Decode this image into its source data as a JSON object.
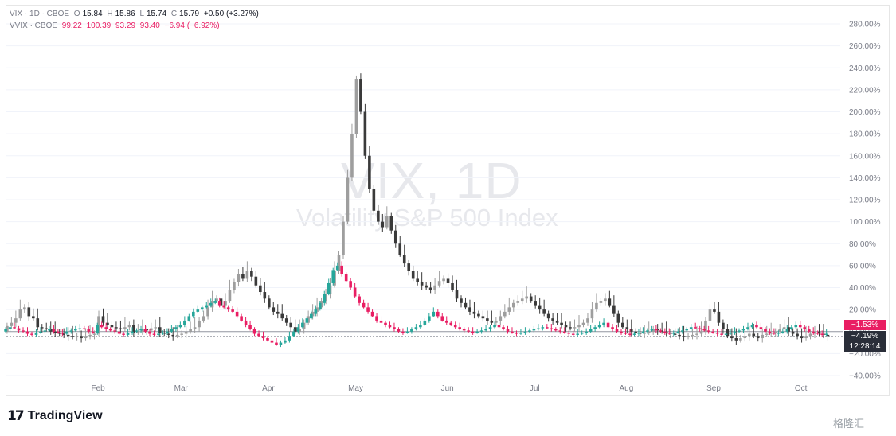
{
  "legend": {
    "vix": {
      "name": "VIX · 1D · CBOE",
      "open_label": "O",
      "open": "15.84",
      "high_label": "H",
      "high": "15.86",
      "low_label": "L",
      "low": "15.74",
      "close_label": "C",
      "close": "15.79",
      "change": "+0.50 (+3.27%)"
    },
    "vvix": {
      "name": "VVIX · CBOE",
      "open": "99.22",
      "high": "100.39",
      "low": "93.29",
      "close": "93.40",
      "change": "−6.94 (−6.92%)"
    }
  },
  "watermark": {
    "title": "VIX, 1D",
    "subtitle": "Volatility S&P 500 Index"
  },
  "badges": {
    "vvix": "−1.53%",
    "vix": "−4.19%",
    "time": "12:28:14"
  },
  "branding": {
    "logo": "TradingView",
    "corner": "格隆汇"
  },
  "colors": {
    "up": "#26a69a",
    "down": "#e91e63",
    "vix_up": "#9e9e9e",
    "vix_down": "#3a3a3a",
    "grid": "#f0f3fa"
  },
  "chart_data": {
    "type": "candlestick",
    "y_axis": {
      "unit": "%",
      "min": -40,
      "max": 280,
      "ticks": [
        "280.00%",
        "260.00%",
        "240.00%",
        "220.00%",
        "200.00%",
        "180.00%",
        "160.00%",
        "140.00%",
        "120.00%",
        "100.00%",
        "80.00%",
        "60.00%",
        "40.00%",
        "20.00%",
        "0.00%",
        "−20.00%",
        "−40.00%"
      ]
    },
    "x_axis": {
      "ticks": [
        "Feb",
        "Mar",
        "Apr",
        "May",
        "Jun",
        "Jul",
        "Aug",
        "Sep",
        "Oct"
      ]
    },
    "x_range": [
      0,
      191
    ],
    "tick_positions": [
      21,
      40,
      60,
      80,
      101,
      121,
      142,
      162,
      182
    ],
    "series": [
      {
        "name": "VIX",
        "style": "gray-candles",
        "close": [
          5,
          8,
          12,
          20,
          22,
          14,
          12,
          4,
          3,
          2,
          0,
          -1,
          -2,
          -3,
          -4,
          -5,
          -4,
          -6,
          -4,
          -3,
          -2,
          14,
          8,
          6,
          4,
          3,
          2,
          4,
          6,
          -1,
          0,
          2,
          1,
          3,
          4,
          -1,
          -2,
          -3,
          -4,
          -3,
          -2,
          0,
          2,
          4,
          10,
          14,
          22,
          28,
          30,
          24,
          28,
          38,
          45,
          52,
          48,
          55,
          50,
          42,
          36,
          30,
          22,
          18,
          16,
          12,
          8,
          4,
          0,
          2,
          8,
          14,
          18,
          22,
          28,
          34,
          42,
          55,
          70,
          100,
          140,
          180,
          230,
          200,
          160,
          130,
          110,
          100,
          95,
          105,
          92,
          80,
          70,
          62,
          55,
          48,
          45,
          42,
          40,
          38,
          42,
          46,
          48,
          44,
          38,
          30,
          26,
          22,
          18,
          16,
          14,
          12,
          10,
          8,
          10,
          14,
          18,
          22,
          26,
          28,
          30,
          32,
          28,
          24,
          20,
          16,
          12,
          10,
          8,
          6,
          4,
          3,
          4,
          6,
          8,
          12,
          20,
          26,
          28,
          30,
          24,
          16,
          8,
          4,
          2,
          0,
          -1,
          -2,
          -1,
          0,
          2,
          1,
          0,
          -1,
          -2,
          -3,
          -4,
          -5,
          -4,
          -3,
          -2,
          0,
          10,
          20,
          18,
          8,
          2,
          -4,
          -6,
          -8,
          -6,
          -4,
          -2,
          -4,
          -6,
          -3,
          -2,
          -1,
          0,
          2,
          4,
          0,
          -2,
          -4,
          -6,
          -4,
          -2,
          0,
          -2,
          -3,
          -4
        ]
      },
      {
        "name": "VVIX",
        "style": "color-candles",
        "close": [
          2,
          4,
          3,
          1,
          0,
          -2,
          -3,
          -1,
          0,
          1,
          2,
          0,
          -1,
          -2,
          0,
          1,
          2,
          3,
          2,
          0,
          -1,
          6,
          4,
          2,
          1,
          0,
          -2,
          -3,
          -1,
          0,
          1,
          2,
          0,
          -2,
          -3,
          -2,
          -1,
          0,
          2,
          4,
          6,
          10,
          14,
          18,
          20,
          22,
          24,
          26,
          28,
          24,
          22,
          20,
          18,
          14,
          10,
          6,
          2,
          -2,
          -4,
          -6,
          -8,
          -10,
          -12,
          -10,
          -8,
          -4,
          0,
          4,
          8,
          12,
          16,
          20,
          26,
          34,
          44,
          56,
          60,
          52,
          46,
          40,
          32,
          26,
          22,
          18,
          14,
          10,
          8,
          6,
          4,
          2,
          0,
          -1,
          0,
          2,
          4,
          6,
          10,
          14,
          18,
          14,
          10,
          8,
          6,
          4,
          2,
          1,
          0,
          -1,
          0,
          1,
          2,
          4,
          6,
          4,
          2,
          0,
          -1,
          -2,
          -1,
          0,
          1,
          2,
          3,
          4,
          3,
          2,
          1,
          0,
          -1,
          -2,
          -3,
          -2,
          -1,
          0,
          2,
          4,
          6,
          8,
          4,
          2,
          0,
          -1,
          -2,
          -3,
          -2,
          -1,
          0,
          1,
          2,
          1,
          0,
          -1,
          -2,
          -1,
          0,
          1,
          2,
          4,
          3,
          2,
          1,
          0,
          -1,
          -2,
          -3,
          -2,
          -1,
          0,
          1,
          2,
          4,
          6,
          4,
          2,
          0,
          -1,
          -2,
          -1,
          0,
          2,
          4,
          6,
          4,
          2,
          0,
          -1,
          -2,
          -3,
          -2
        ]
      }
    ]
  }
}
